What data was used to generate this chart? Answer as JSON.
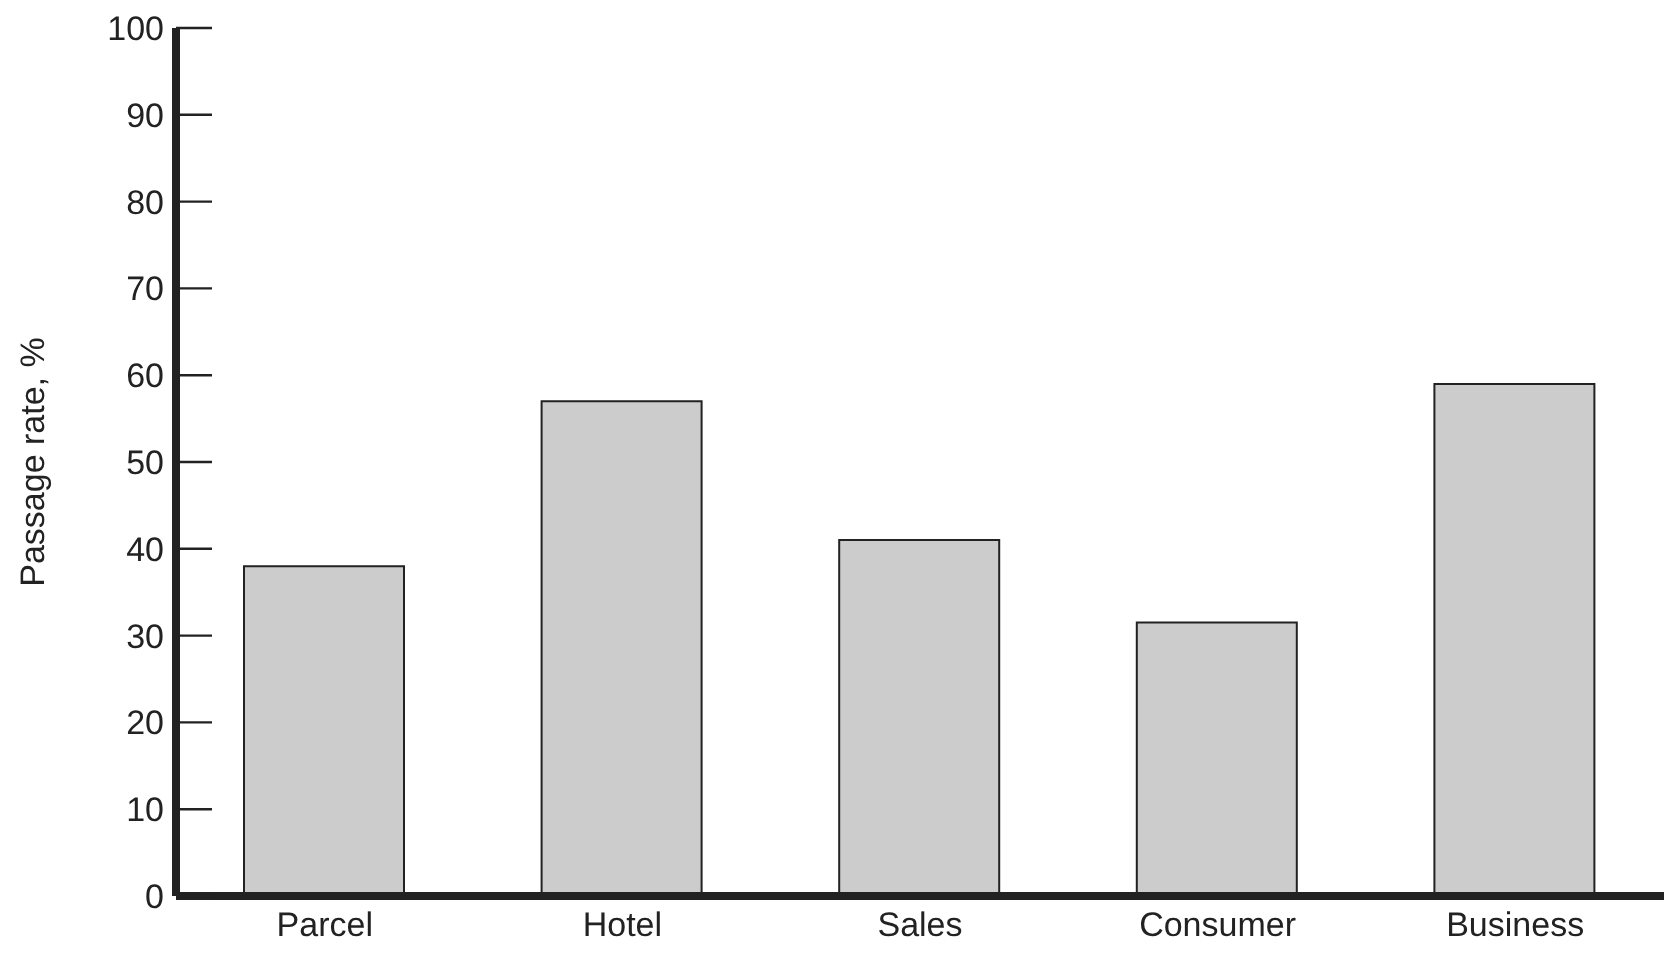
{
  "chart_data": {
    "type": "bar",
    "ylabel": "Passage rate, %",
    "categories": [
      "Parcel",
      "Hotel",
      "Sales",
      "Consumer",
      "Business"
    ],
    "values": [
      38,
      57,
      41,
      31.5,
      59
    ],
    "color": "#cccccc",
    "ylim": [
      0,
      100
    ],
    "yticks": [
      0,
      10,
      20,
      30,
      40,
      50,
      60,
      70,
      80,
      90,
      100
    ],
    "grid": false,
    "legend": false
  }
}
